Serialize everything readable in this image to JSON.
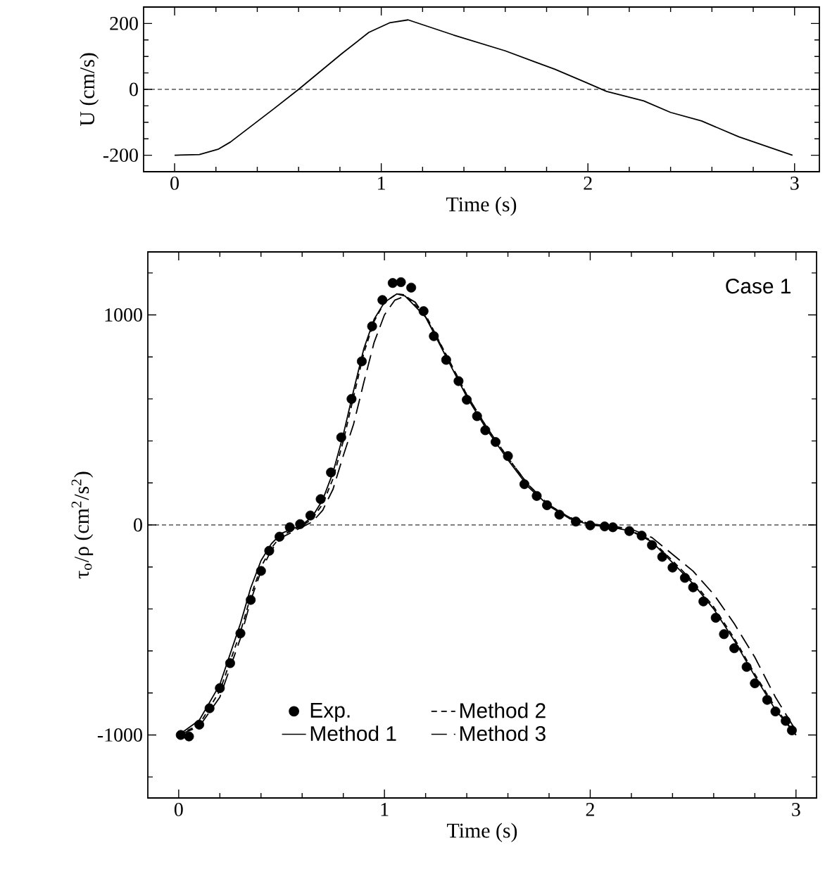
{
  "chart_data": [
    {
      "type": "line",
      "xlabel": "Time (s)",
      "ylabel": "U  (cm/s)",
      "xlim": [
        -0.15,
        3.12
      ],
      "ylim": [
        -250,
        250
      ],
      "xticks": [
        0,
        1,
        2,
        3,
        {
          "value": 0.2,
          "label": null
        },
        {
          "value": 0.4,
          "label": null
        },
        {
          "value": 0.6,
          "label": null
        },
        {
          "value": 0.8,
          "label": null
        },
        {
          "value": 1.2,
          "label": null
        },
        {
          "value": 1.4,
          "label": null
        },
        {
          "value": 1.6,
          "label": null
        },
        {
          "value": 1.8,
          "label": null
        },
        {
          "value": 2.2,
          "label": null
        },
        {
          "value": 2.4,
          "label": null
        },
        {
          "value": 2.6,
          "label": null
        },
        {
          "value": 2.8,
          "label": null
        }
      ],
      "yticks": [
        -200,
        0,
        200,
        {
          "value": -150,
          "label": null
        },
        {
          "value": -100,
          "label": null
        },
        {
          "value": -50,
          "label": null
        },
        {
          "value": 50,
          "label": null
        },
        {
          "value": 100,
          "label": null
        },
        {
          "value": 150,
          "label": null
        }
      ],
      "ref_lines": [
        {
          "axis": "y",
          "value": 0,
          "line_style": "dashed",
          "color": "#000000"
        }
      ],
      "series": [
        {
          "color": "#000000",
          "line_style": "solid",
          "x": [
            0,
            0.12,
            0.21,
            0.27,
            0.48,
            0.6,
            0.81,
            0.94,
            1.04,
            1.13,
            1.35,
            1.6,
            1.84,
            1.99,
            2.09,
            2.27,
            2.4,
            2.55,
            2.73,
            2.99
          ],
          "values": [
            -200,
            -198,
            -182,
            -160,
            -59,
            0,
            109,
            173,
            202,
            211,
            165,
            117,
            61,
            21,
            -6,
            -35,
            -70,
            -96,
            -144,
            -200
          ]
        }
      ]
    },
    {
      "type": "line",
      "xlabel": "Time (s)",
      "ylabel": "τ$_{o}$/ρ  (cm$^{2}$/s$^{2}$)",
      "xlim": [
        -0.15,
        3.1
      ],
      "ylim": [
        -1300,
        1300
      ],
      "xticks": [
        0,
        1,
        2,
        3,
        {
          "value": 0.2,
          "label": null
        },
        {
          "value": 0.4,
          "label": null
        },
        {
          "value": 0.6,
          "label": null
        },
        {
          "value": 0.8,
          "label": null
        },
        {
          "value": 1.2,
          "label": null
        },
        {
          "value": 1.4,
          "label": null
        },
        {
          "value": 1.6,
          "label": null
        },
        {
          "value": 1.8,
          "label": null
        },
        {
          "value": 2.2,
          "label": null
        },
        {
          "value": 2.4,
          "label": null
        },
        {
          "value": 2.6,
          "label": null
        },
        {
          "value": 2.8,
          "label": null
        }
      ],
      "yticks": [
        -1000,
        0,
        1000,
        {
          "value": -1200,
          "label": null
        },
        {
          "value": -800,
          "label": null
        },
        {
          "value": -600,
          "label": null
        },
        {
          "value": -400,
          "label": null
        },
        {
          "value": -200,
          "label": null
        },
        {
          "value": 200,
          "label": null
        },
        {
          "value": 400,
          "label": null
        },
        {
          "value": 600,
          "label": null
        },
        {
          "value": 800,
          "label": null
        },
        {
          "value": 1200,
          "label": null
        }
      ],
      "ref_lines": [
        {
          "axis": "y",
          "value": 0,
          "line_style": "dashed",
          "color": "#000000"
        }
      ],
      "annotations": [
        "Case 1"
      ],
      "legend": "bottom",
      "series": [
        {
          "name": "Exp.",
          "type": "scatter",
          "marker": "circle",
          "color": "#000000",
          "x": [
            0.01,
            0.05,
            0.1,
            0.15,
            0.2,
            0.25,
            0.3,
            0.35,
            0.4,
            0.44,
            0.49,
            0.54,
            0.59,
            0.64,
            0.69,
            0.74,
            0.79,
            0.84,
            0.89,
            0.94,
            0.99,
            1.04,
            1.08,
            1.13,
            1.19,
            1.24,
            1.3,
            1.36,
            1.4,
            1.45,
            1.49,
            1.54,
            1.6,
            1.68,
            1.74,
            1.79,
            1.85,
            1.93,
            2.0,
            2.07,
            2.11,
            2.19,
            2.25,
            2.3,
            2.35,
            2.4,
            2.46,
            2.5,
            2.55,
            2.61,
            2.65,
            2.7,
            2.76,
            2.8,
            2.86,
            2.9,
            2.95,
            2.98
          ],
          "values": [
            -1000,
            -1007,
            -951,
            -873,
            -777,
            -658,
            -516,
            -357,
            -219,
            -123,
            -56,
            -11,
            4,
            45,
            123,
            250,
            417,
            600,
            779,
            946,
            1071,
            1152,
            1156,
            1130,
            1018,
            899,
            786,
            685,
            596,
            518,
            451,
            395,
            328,
            194,
            138,
            94,
            49,
            16,
            -2,
            -7,
            -11,
            -29,
            -51,
            -96,
            -152,
            -203,
            -252,
            -297,
            -364,
            -442,
            -520,
            -587,
            -676,
            -754,
            -833,
            -888,
            -933,
            -978
          ]
        },
        {
          "name": "Method 1",
          "color": "#000000",
          "line_style": "solid",
          "x": [
            0,
            0.1,
            0.2,
            0.3,
            0.35,
            0.4,
            0.45,
            0.5,
            0.6,
            0.65,
            0.7,
            0.75,
            0.8,
            0.85,
            0.9,
            0.95,
            1.0,
            1.06,
            1.1,
            1.2,
            1.3,
            1.4,
            1.5,
            1.6,
            1.7,
            1.8,
            1.9,
            2.0,
            2.1,
            2.2,
            2.3,
            2.4,
            2.5,
            2.6,
            2.7,
            2.8,
            2.9,
            3.0
          ],
          "values": [
            -1000,
            -930,
            -760,
            -470,
            -300,
            -170,
            -90,
            -40,
            0,
            40,
            120,
            250,
            430,
            640,
            840,
            980,
            1060,
            1100,
            1090,
            990,
            800,
            610,
            450,
            310,
            180,
            90,
            30,
            0,
            -10,
            -30,
            -80,
            -180,
            -280,
            -400,
            -550,
            -720,
            -880,
            -1000
          ]
        },
        {
          "name": "Method 2",
          "color": "#000000",
          "line_style": "dashed",
          "x": [
            0,
            0.1,
            0.2,
            0.3,
            0.35,
            0.4,
            0.45,
            0.5,
            0.6,
            0.65,
            0.7,
            0.75,
            0.8,
            0.85,
            0.9,
            0.95,
            1.0,
            1.06,
            1.1,
            1.2,
            1.3,
            1.4,
            1.5,
            1.6,
            1.7,
            1.8,
            1.9,
            2.0,
            2.1,
            2.2,
            2.3,
            2.4,
            2.5,
            2.6,
            2.7,
            2.8,
            2.9,
            3.0
          ],
          "values": [
            -1000,
            -950,
            -790,
            -510,
            -340,
            -200,
            -110,
            -50,
            -5,
            30,
            100,
            220,
            400,
            610,
            820,
            970,
            1060,
            1100,
            1095,
            1000,
            810,
            620,
            460,
            320,
            190,
            95,
            35,
            5,
            -8,
            -28,
            -75,
            -170,
            -270,
            -390,
            -540,
            -710,
            -870,
            -1000
          ]
        },
        {
          "name": "Method 3",
          "color": "#000000",
          "line_style": "dashed",
          "x": [
            0,
            0.1,
            0.2,
            0.3,
            0.35,
            0.4,
            0.45,
            0.5,
            0.6,
            0.65,
            0.7,
            0.75,
            0.8,
            0.85,
            0.9,
            0.95,
            1.0,
            1.05,
            1.1,
            1.15,
            1.2,
            1.3,
            1.4,
            1.5,
            1.6,
            1.7,
            1.8,
            1.9,
            2.0,
            2.1,
            2.2,
            2.3,
            2.4,
            2.5,
            2.6,
            2.7,
            2.8,
            2.9,
            3.0
          ],
          "values": [
            -1000,
            -960,
            -820,
            -540,
            -360,
            -220,
            -120,
            -60,
            -10,
            15,
            70,
            170,
            330,
            480,
            680,
            870,
            1000,
            1070,
            1090,
            1060,
            990,
            810,
            620,
            460,
            320,
            190,
            95,
            35,
            5,
            -5,
            -20,
            -60,
            -140,
            -220,
            -330,
            -470,
            -630,
            -820,
            -980
          ]
        }
      ]
    }
  ]
}
